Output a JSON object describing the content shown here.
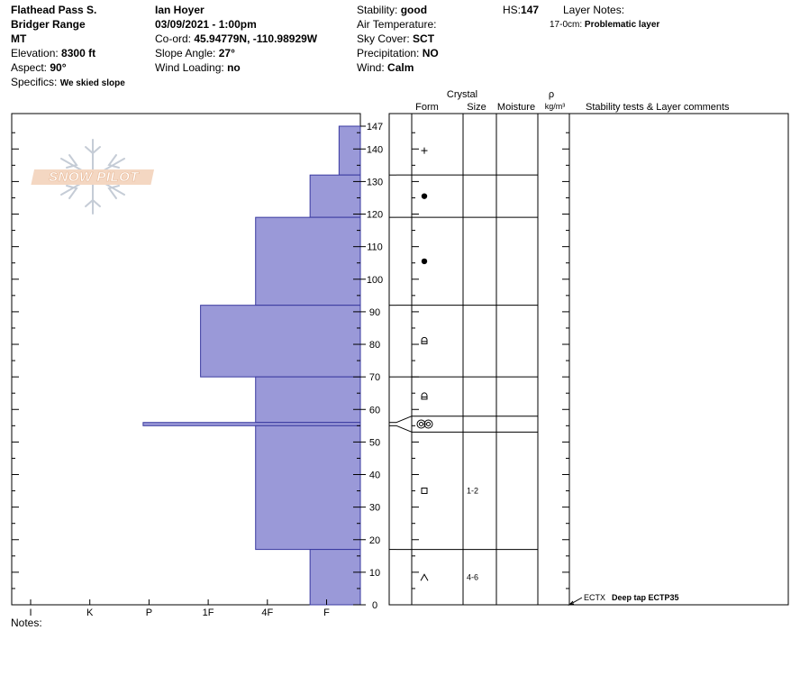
{
  "header": {
    "location": "Flathead Pass S.",
    "range": "Bridger Range",
    "state": "MT",
    "elevation_label": "Elevation:",
    "elevation_value": "8300 ft",
    "aspect_label": "Aspect:",
    "aspect_value": "90°",
    "specifics_label": "Specifics:",
    "specifics_value": "We skied slope",
    "observer": "Ian Hoyer",
    "datetime": "03/09/2021 - 1:00pm",
    "coord_label": "Co-ord:",
    "coord_value": "45.94779N, -110.98929W",
    "slope_label": "Slope Angle:",
    "slope_value": "27°",
    "wind_loading_label": "Wind Loading:",
    "wind_loading_value": "no",
    "stability_label": "Stability:",
    "stability_value": "good",
    "air_temp_label": "Air Temperature:",
    "sky_label": "Sky Cover:",
    "sky_value": "SCT",
    "precip_label": "Precipitation:",
    "precip_value": "NO",
    "wind_label": "Wind:",
    "wind_value": "Calm",
    "hs_label": "HS:",
    "hs_value": "147",
    "layer_notes_label": "Layer Notes:",
    "layer_note_range": "17-0cm:",
    "layer_note_text": "Problematic layer",
    "notes_label": "Notes:"
  },
  "logo": {
    "text": "SNOW PILOT"
  },
  "columns": {
    "crystal": "Crystal",
    "form": "Form",
    "size": "Size",
    "moisture": "Moisture",
    "rho": "ρ",
    "density_unit": "kg/m³",
    "stability_comments": "Stability tests & Layer comments"
  },
  "chart_data": {
    "type": "bar",
    "title": "",
    "hardness_categories": [
      "I",
      "K",
      "P",
      "1F",
      "4F",
      "F"
    ],
    "y_ticks": [
      0,
      10,
      20,
      30,
      40,
      50,
      60,
      70,
      80,
      90,
      100,
      110,
      120,
      130,
      140,
      147
    ],
    "ylim": [
      0,
      147
    ],
    "layers": [
      {
        "top": 147,
        "bottom": 132,
        "hardness": 0.36,
        "form": "plus"
      },
      {
        "top": 132,
        "bottom": 119,
        "hardness": 0.85,
        "form": "dot"
      },
      {
        "top": 119,
        "bottom": 92,
        "hardness": 1.77,
        "form": "dot"
      },
      {
        "top": 92,
        "bottom": 70,
        "hardness": 2.7,
        "form": "faceted-rounded"
      },
      {
        "top": 70,
        "bottom": 56,
        "hardness": 1.77,
        "form": "faceted-rounded"
      },
      {
        "top": 56,
        "bottom": 55,
        "hardness": 3.67,
        "form": "melt-freeze"
      },
      {
        "top": 55,
        "bottom": 17,
        "hardness": 1.77,
        "form": "faceted",
        "size": "1-2"
      },
      {
        "top": 17,
        "bottom": 0,
        "hardness": 0.85,
        "form": "depth-hoar",
        "size": "4-6"
      }
    ],
    "stability_tests": [
      {
        "depth": 0,
        "code": "ECTX",
        "comment": "Deep tap ECTP35"
      }
    ],
    "colors": {
      "bar_fill": "#9a99d8",
      "bar_stroke": "#3a3aa0"
    }
  }
}
